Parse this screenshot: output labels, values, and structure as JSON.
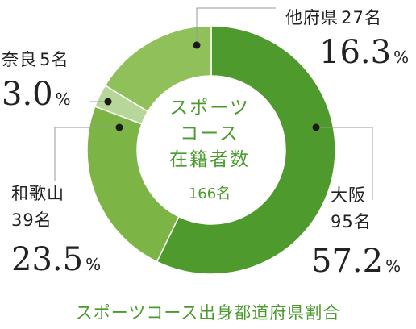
{
  "chart_data": {
    "type": "pie",
    "title": "スポーツコース出身都道府県割合",
    "center_title_lines": [
      "スポーツ",
      "コース",
      "在籍者数"
    ],
    "center_count": "166名",
    "slices": [
      {
        "name": "大阪",
        "count_label": "95名",
        "percent": 57.2,
        "percent_label": "57.2",
        "color": "#4f9a2c"
      },
      {
        "name": "和歌山",
        "count_label": "39名",
        "percent": 23.5,
        "percent_label": "23.5",
        "color": "#7db446"
      },
      {
        "name": "奈良",
        "count_label": "5名",
        "percent": 3.0,
        "percent_label": "3.0",
        "color": "#b7d79a"
      },
      {
        "name": "他府県",
        "count_label": "27名",
        "percent": 16.3,
        "percent_label": "16.3",
        "color": "#8fc05a"
      }
    ],
    "percent_unit": "%"
  }
}
